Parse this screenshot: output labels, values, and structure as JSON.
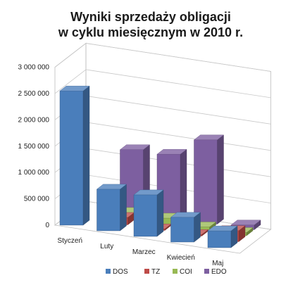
{
  "chart_data": {
    "type": "bar",
    "title_lines": [
      "Wyniki sprzedaży obligacji",
      "w cyklu miesięcznym w 2010 r."
    ],
    "categories": [
      "Styczeń",
      "Luty",
      "Marzec",
      "Kwiecień",
      "Maj"
    ],
    "y_ticks": [
      "0",
      "500 000",
      "1 000 000",
      "1 500 000",
      "2 000 000",
      "2 500 000",
      "3 000 000"
    ],
    "ylim": [
      0,
      3000000
    ],
    "grid": true,
    "legend_position": "bottom",
    "series": [
      {
        "name": "DOS",
        "color": "#4a7ebb",
        "values": [
          2550000,
          790000,
          790000,
          470000,
          320000
        ]
      },
      {
        "name": "TZ",
        "color": "#be4b48",
        "values": [
          0,
          140000,
          30000,
          30000,
          210000
        ]
      },
      {
        "name": "COI",
        "color": "#98b954",
        "values": [
          0,
          120000,
          120000,
          60000,
          60000
        ]
      },
      {
        "name": "EDO",
        "color": "#7d5fa0",
        "values": [
          0,
          1200000,
          1220000,
          1600000,
          90000
        ]
      }
    ]
  }
}
